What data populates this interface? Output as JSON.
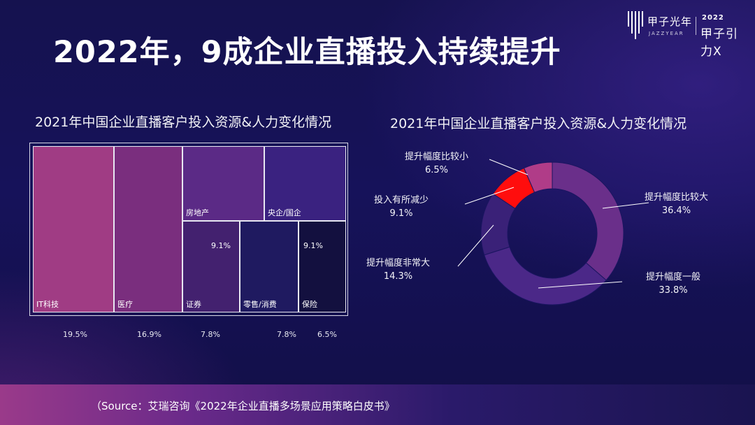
{
  "title": "2022年，9成企业直播投入持续提升",
  "logo": {
    "cn": "甲子光年",
    "en": "JAZZYEAR",
    "year": "2022",
    "brand": "甲子引力X"
  },
  "source": "（Source：艾瑞咨询《2022年企业直播多场景应用策略白皮书》",
  "chart_data": [
    {
      "type": "treemap",
      "title": "2021年中国企业直播客户投入资源&人力变化情况",
      "items": [
        {
          "label": "IT科技",
          "value": 19.5,
          "value_text": "19.5%",
          "color": "#a03c84"
        },
        {
          "label": "医疗",
          "value": 16.9,
          "value_text": "16.9%",
          "color": "#7a2e7e"
        },
        {
          "label": "房地产",
          "value": null,
          "value_text": "",
          "color": "#5b2a86"
        },
        {
          "label": "央企/国企",
          "value": null,
          "value_text": "",
          "color": "#3a2280"
        },
        {
          "label": "证券",
          "value": 9.1,
          "value_text": "9.1%",
          "color": "#43216f"
        },
        {
          "label": "零售/消费",
          "value": null,
          "value_text": "",
          "color": "#1f1a60"
        },
        {
          "label": "保险",
          "value": 9.1,
          "value_text": "9.1%",
          "color": "#13103f"
        }
      ],
      "bottom_labels": [
        "19.5%",
        "16.9%",
        "7.8%",
        "7.8%",
        "6.5%"
      ]
    },
    {
      "type": "pie",
      "title": "2021年中国企业直播客户投入资源&人力变化情况",
      "slices": [
        {
          "label": "提升幅度比较大",
          "value": 36.4,
          "value_text": "36.4%",
          "color": "#6a2f8a"
        },
        {
          "label": "提升幅度一般",
          "value": 33.8,
          "value_text": "33.8%",
          "color": "#4b2888"
        },
        {
          "label": "提升幅度非常大",
          "value": 14.3,
          "value_text": "14.3%",
          "color": "#3a2178"
        },
        {
          "label": "投入有所减少",
          "value": 9.1,
          "value_text": "9.1%",
          "color": "#ff0d0d"
        },
        {
          "label": "提升幅度比较小",
          "value": 6.5,
          "value_text": "6.5%",
          "color": "#b03c88"
        }
      ]
    }
  ]
}
